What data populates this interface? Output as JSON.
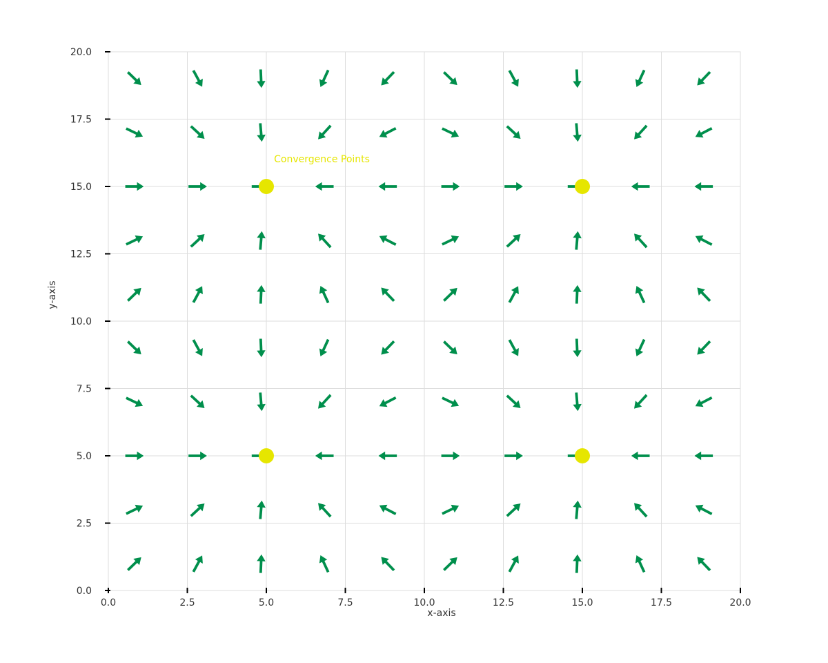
{
  "chart_data": {
    "type": "quiver",
    "title": "",
    "xlabel": "x-axis",
    "ylabel": "y-axis",
    "xlim": [
      0,
      20
    ],
    "ylim": [
      0,
      20
    ],
    "grid": true,
    "x_ticks": [
      "0.0",
      "2.5",
      "5.0",
      "7.5",
      "10.0",
      "12.5",
      "15.0",
      "17.5",
      "20.0"
    ],
    "y_ticks": [
      "0.0",
      "2.5",
      "5.0",
      "7.5",
      "10.0",
      "12.5",
      "15.0",
      "17.5",
      "20.0"
    ],
    "x_tick_values": [
      0,
      2.5,
      5,
      7.5,
      10,
      12.5,
      15,
      17.5,
      20
    ],
    "y_tick_values": [
      0,
      2.5,
      5,
      7.5,
      10,
      12.5,
      15,
      17.5,
      20
    ],
    "vector_field": {
      "x": [
        0.833,
        2.833,
        4.833,
        6.833,
        8.833,
        10.833,
        12.833,
        14.833,
        16.833,
        18.833
      ],
      "y": [
        1.0,
        3.0,
        5.0,
        7.0,
        9.0,
        11.0,
        13.0,
        15.0,
        17.0,
        19.0
      ],
      "field": "towards nearest convergence point",
      "arrow_color": "#008f4c"
    },
    "convergence_points": {
      "label": "Convergence Points",
      "color": "#e6e600",
      "points": [
        {
          "x": 5,
          "y": 15
        },
        {
          "x": 15,
          "y": 15
        },
        {
          "x": 5,
          "y": 5
        },
        {
          "x": 15,
          "y": 5
        }
      ]
    },
    "annotation": {
      "text": "Convergence Points",
      "x": 5.2,
      "y": 16.0,
      "color": "#e6e600"
    }
  }
}
